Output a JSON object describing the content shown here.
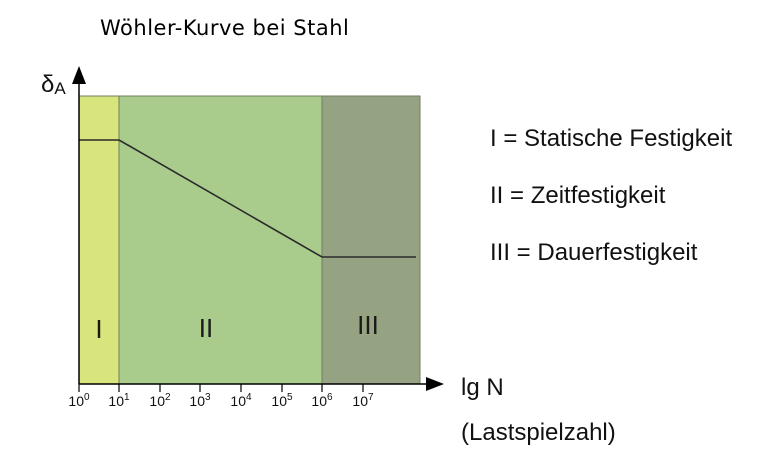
{
  "title": "Wöhler-Kurve bei Stahl",
  "y_axis": {
    "symbol": "δ",
    "subscript": "A"
  },
  "x_axis": {
    "label": "lg N",
    "sublabel": "(Lastspielzahl)",
    "ticks": [
      {
        "base": "10",
        "exp": "0"
      },
      {
        "base": "10",
        "exp": "1"
      },
      {
        "base": "10",
        "exp": "2"
      },
      {
        "base": "10",
        "exp": "3"
      },
      {
        "base": "10",
        "exp": "4"
      },
      {
        "base": "10",
        "exp": "5"
      },
      {
        "base": "10",
        "exp": "6"
      },
      {
        "base": "10",
        "exp": "7"
      }
    ]
  },
  "regions": [
    {
      "label": "I",
      "color": "#d8e47c"
    },
    {
      "label": "II",
      "color": "#a9cb8c"
    },
    {
      "label": "III",
      "color": "#96a382"
    }
  ],
  "legend": [
    "I = Statische Festigkeit",
    "II = Zeitfestigkeit",
    "III = Dauerfestigkeit"
  ],
  "colors": {
    "curve": "#2a2a2a",
    "axis": "#000000",
    "region_border": "#6e7f60"
  }
}
